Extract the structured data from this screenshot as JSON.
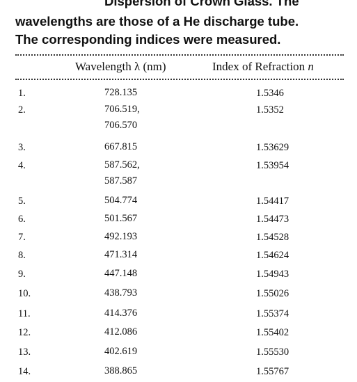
{
  "caption": {
    "lines": [
      "Dispersion of Crown Glass. The",
      "wavelengths are those of a He discharge tube.",
      "The corresponding indices were measured."
    ]
  },
  "table": {
    "headers": [
      "Wavelength λ (nm)",
      "Index of Refraction n"
    ],
    "rows": [
      {
        "n": "1.",
        "wavelength": [
          "728.135"
        ],
        "index": "1.5346"
      },
      {
        "n": "2.",
        "wavelength": [
          "706.519,",
          "706.570"
        ],
        "index": "1.5352"
      },
      {
        "n": "3.",
        "wavelength": [
          "667.815"
        ],
        "index": "1.53629"
      },
      {
        "n": "4.",
        "wavelength": [
          "587.562,",
          "587.587"
        ],
        "index": "1.53954"
      },
      {
        "n": "5.",
        "wavelength": [
          "504.774"
        ],
        "index": "1.54417"
      },
      {
        "n": "6.",
        "wavelength": [
          "501.567"
        ],
        "index": "1.54473"
      },
      {
        "n": "7.",
        "wavelength": [
          "492.193"
        ],
        "index": "1.54528"
      },
      {
        "n": "8.",
        "wavelength": [
          "471.314"
        ],
        "index": "1.54624"
      },
      {
        "n": "9.",
        "wavelength": [
          "447.148"
        ],
        "index": "1.54943"
      },
      {
        "n": "10.",
        "wavelength": [
          "438.793"
        ],
        "index": "1.55026"
      },
      {
        "n": "11.",
        "wavelength": [
          "414.376"
        ],
        "index": "1.55374"
      },
      {
        "n": "12.",
        "wavelength": [
          "412.086"
        ],
        "index": "1.55402"
      },
      {
        "n": "13.",
        "wavelength": [
          "402.619"
        ],
        "index": "1.55530"
      },
      {
        "n": "14.",
        "wavelength": [
          "388.865"
        ],
        "index": "1.55767"
      }
    ]
  }
}
